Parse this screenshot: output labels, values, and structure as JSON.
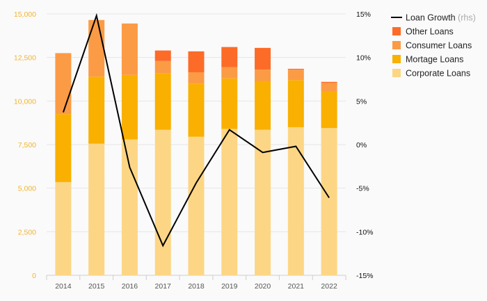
{
  "chart_data": {
    "type": "bar",
    "stacked": true,
    "categories": [
      "2014",
      "2015",
      "2016",
      "2017",
      "2018",
      "2019",
      "2020",
      "2021",
      "2022"
    ],
    "series": [
      {
        "name": "Corporate Loans",
        "color": "#fdd685",
        "values": [
          5350,
          7550,
          7800,
          8350,
          7950,
          8400,
          8350,
          8500,
          8450
        ]
      },
      {
        "name": "Mortage Loans",
        "color": "#f9b000",
        "values": [
          3900,
          3850,
          3700,
          3250,
          3050,
          2900,
          2800,
          2700,
          2100
        ]
      },
      {
        "name": "Consumer Loans",
        "color": "#fc9b45",
        "values": [
          3500,
          3250,
          2950,
          700,
          650,
          650,
          650,
          600,
          500
        ]
      },
      {
        "name": "Other Loans",
        "color": "#fd6b28",
        "values": [
          0,
          0,
          0,
          600,
          1200,
          1150,
          1250,
          50,
          50
        ]
      }
    ],
    "line": {
      "name": "Loan Growth",
      "name_suffix": "(rhs)",
      "color": "#000000",
      "values": [
        3.7,
        14.8,
        -2.6,
        -11.6,
        -4.4,
        1.7,
        -0.9,
        -0.2,
        -6.1
      ]
    },
    "y_left": {
      "min": 0,
      "max": 15000,
      "ticks": [
        "0",
        "2,500",
        "5,000",
        "7,500",
        "10,000",
        "12,500",
        "15,000"
      ]
    },
    "y_right": {
      "min": -15,
      "max": 15,
      "ticks": [
        "-15%",
        "-10%",
        "-5%",
        "0%",
        "5%",
        "10%",
        "15%"
      ]
    },
    "grid": true,
    "legend_position": "right",
    "legend_order": [
      "Loan Growth",
      "Other Loans",
      "Consumer Loans",
      "Mortage Loans",
      "Corporate Loans"
    ]
  }
}
